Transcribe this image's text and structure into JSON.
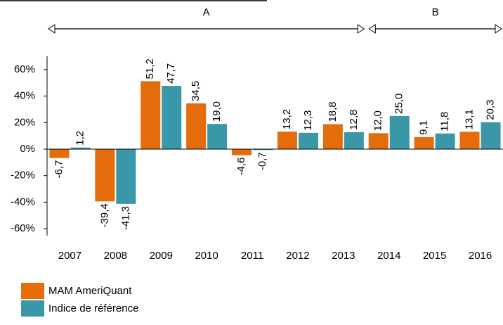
{
  "chart_data": {
    "type": "bar",
    "categories": [
      "2007",
      "2008",
      "2009",
      "2010",
      "2011",
      "2012",
      "2013",
      "2014",
      "2015",
      "2016"
    ],
    "series": [
      {
        "name": "MAM AmeriQuant",
        "color": "#e46c0a",
        "values": [
          -6.7,
          -39.4,
          51.2,
          34.5,
          -4.6,
          13.2,
          18.8,
          12.0,
          9.1,
          13.1
        ],
        "value_labels": [
          "-6,7",
          "-39,4",
          "51,2",
          "34,5",
          "-4,6",
          "13,2",
          "18,8",
          "12,0",
          "9,1",
          "13,1"
        ]
      },
      {
        "name": "Indice de référence",
        "color": "#3a97a8",
        "values": [
          1.2,
          -41.3,
          47.7,
          19.0,
          -0.7,
          12.3,
          12.8,
          25.0,
          11.8,
          20.3
        ],
        "value_labels": [
          "1,2",
          "-41,3",
          "47,7",
          "19,0",
          "-0,7",
          "12,3",
          "12,8",
          "25,0",
          "11,8",
          "20,3"
        ]
      }
    ],
    "ylim": [
      -70,
      70
    ],
    "yticks": [
      {
        "value": -60,
        "label": "-60%"
      },
      {
        "value": -40,
        "label": "-40%"
      },
      {
        "value": -20,
        "label": "-20%"
      },
      {
        "value": 0,
        "label": "0%"
      },
      {
        "value": 20,
        "label": "20%"
      },
      {
        "value": 40,
        "label": "40%"
      },
      {
        "value": 60,
        "label": "60%"
      }
    ],
    "annotations": [
      "A",
      "B"
    ],
    "grid": false
  }
}
